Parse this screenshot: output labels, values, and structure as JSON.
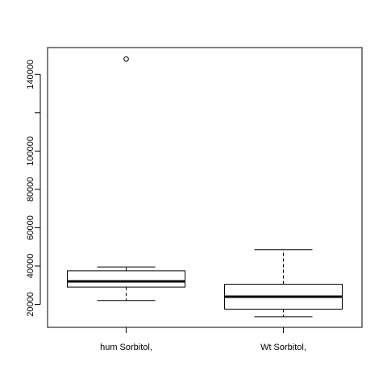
{
  "chart_data": {
    "type": "box",
    "title": "",
    "xlabel": "",
    "ylabel": "",
    "categories": [
      "hum Sorbitol,",
      "Wt Sorbitol,"
    ],
    "boxes": [
      {
        "name": "hum Sorbitol,",
        "whisker_low": 22000,
        "q1": 29000,
        "median": 32000,
        "q3": 37500,
        "whisker_high": 39500,
        "outliers": [
          148000
        ]
      },
      {
        "name": "Wt Sorbitol,",
        "whisker_low": 13500,
        "q1": 17500,
        "median": 24000,
        "q3": 30500,
        "whisker_high": 48500,
        "outliers": []
      }
    ],
    "ylim": [
      8000,
      154000
    ],
    "yticks": [
      20000,
      40000,
      60000,
      80000,
      100000,
      120000,
      140000
    ],
    "ytick_labels": [
      "20000",
      "40000",
      "60000",
      "80000",
      "100000",
      "",
      "140000"
    ],
    "grid": false,
    "colors": {
      "box_fill": "#ffffff",
      "stroke": "#000000"
    }
  }
}
